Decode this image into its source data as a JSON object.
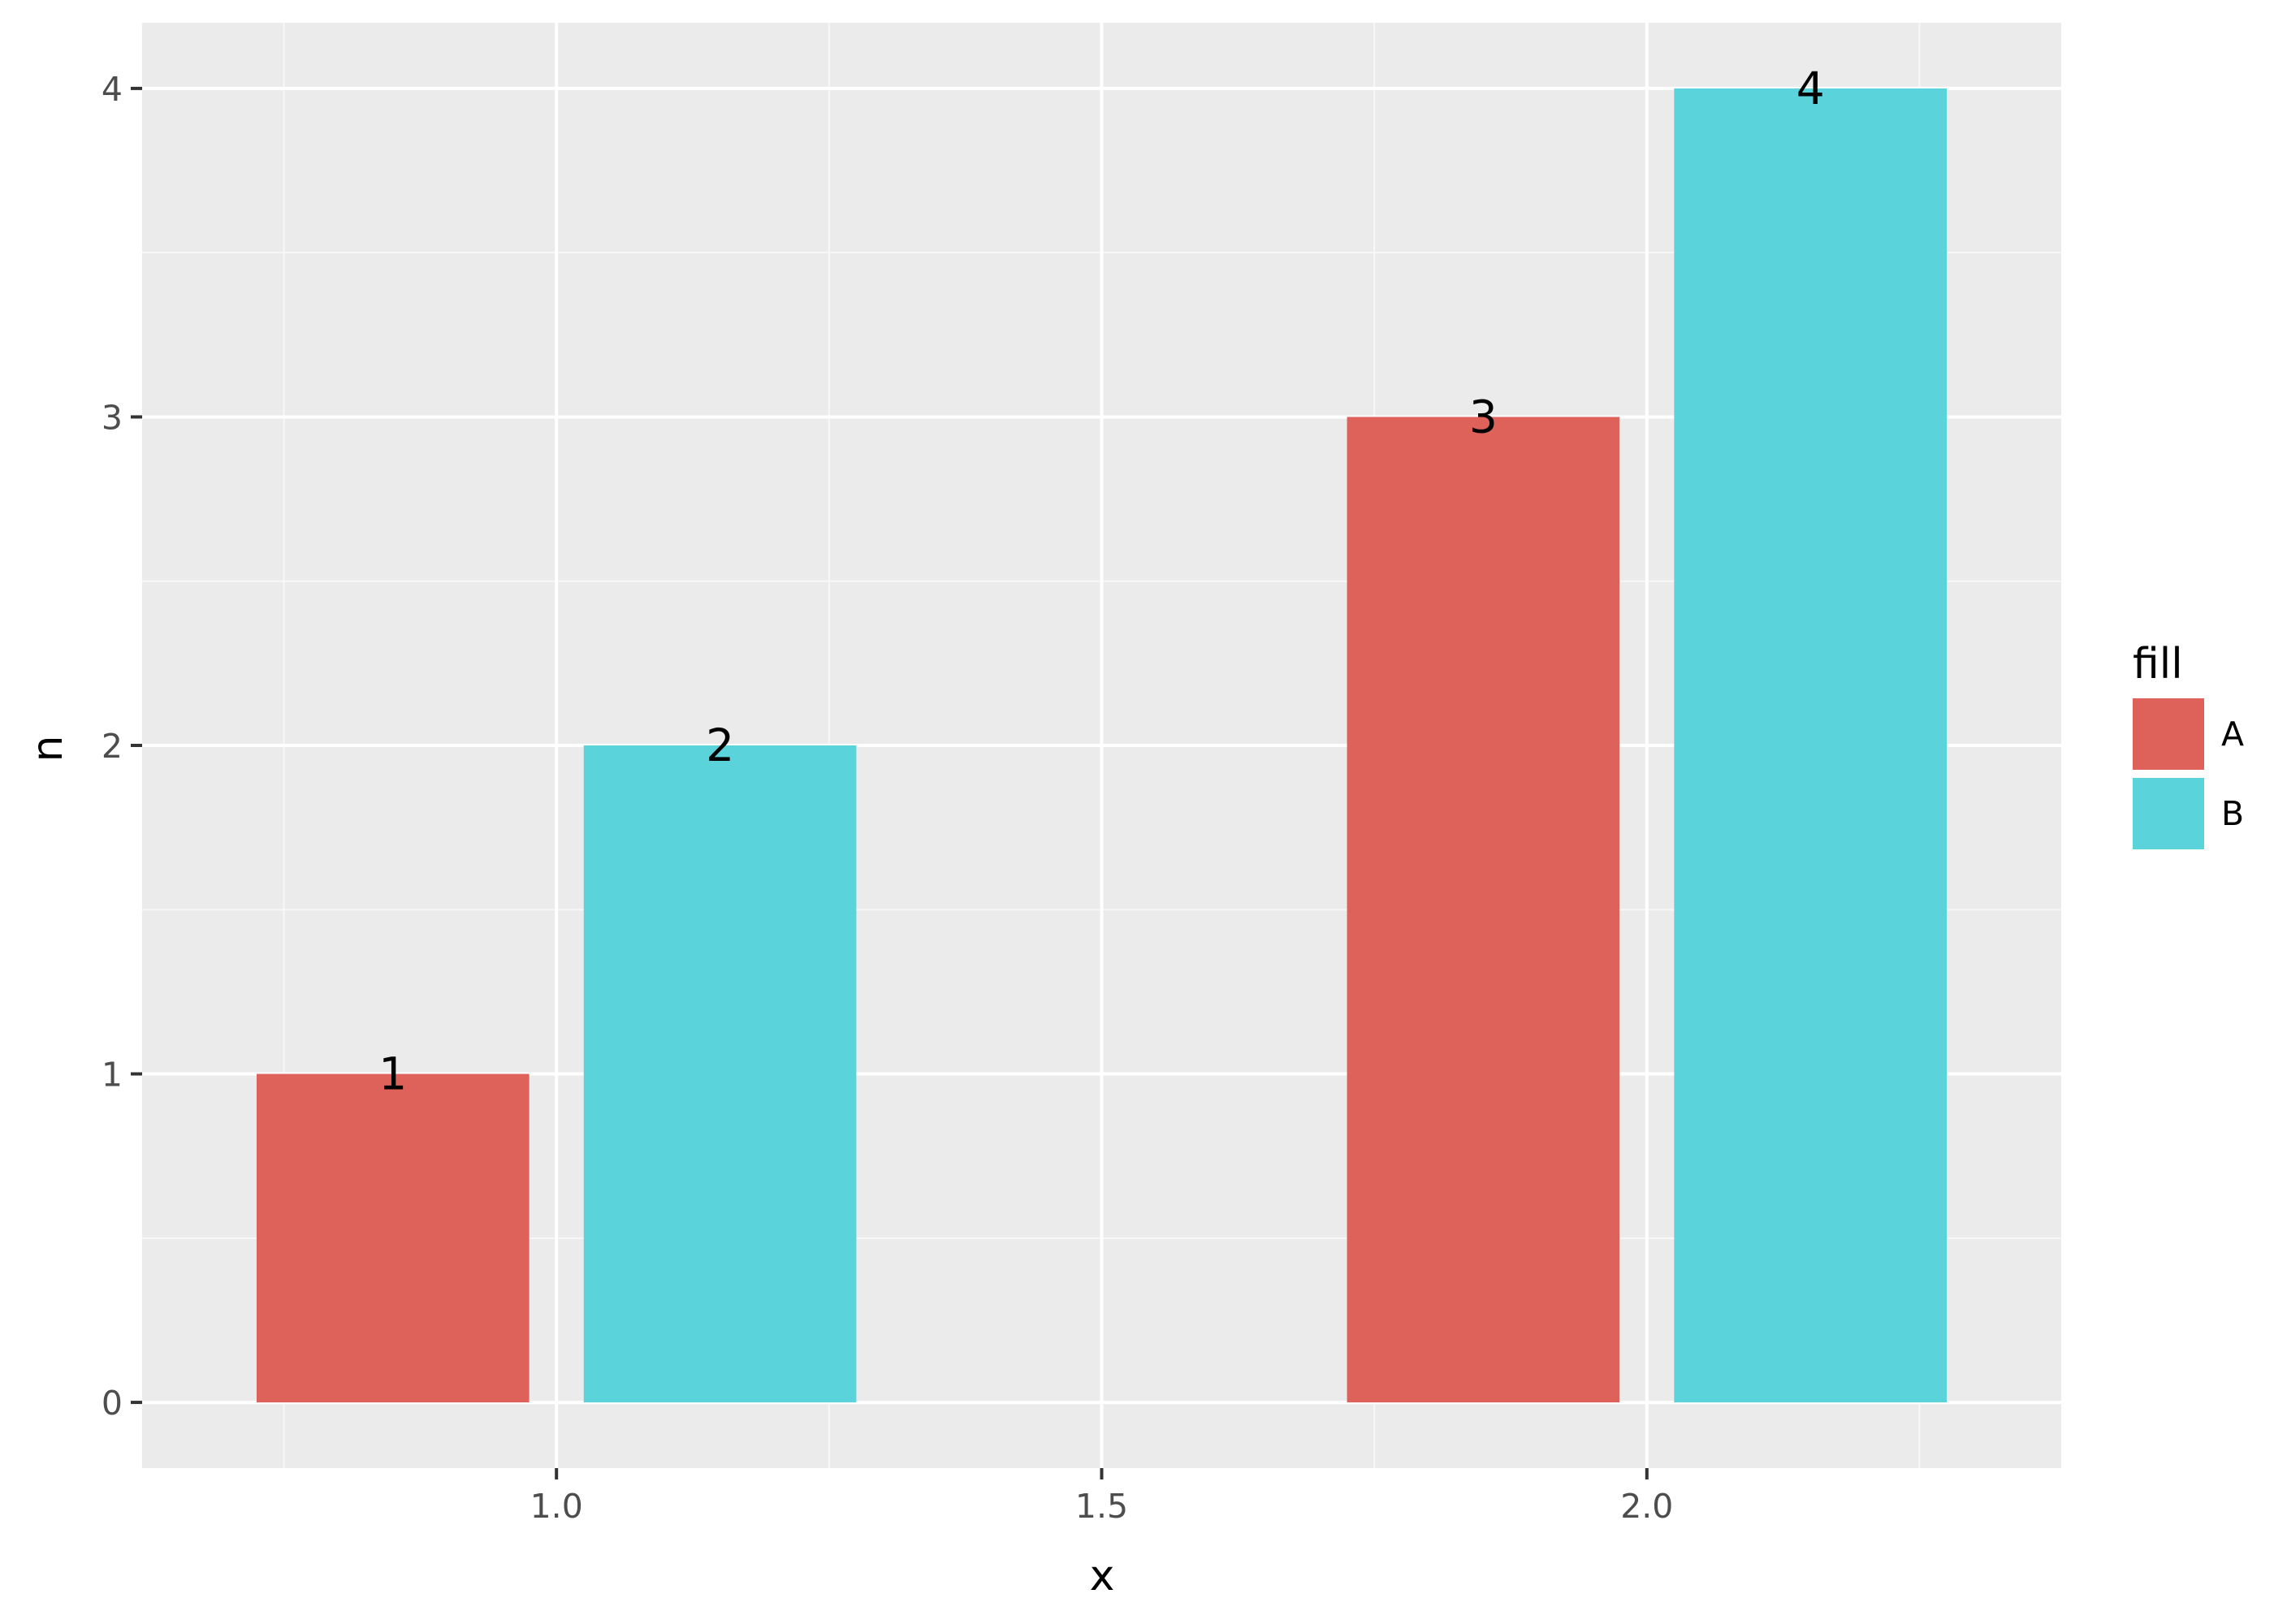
{
  "chart_data": {
    "type": "bar",
    "title": "",
    "xlabel": "x",
    "ylabel": "n",
    "xlim": [
      0.62,
      2.38
    ],
    "ylim": [
      -0.2,
      4.2
    ],
    "x_ticks": [
      1.0,
      1.5,
      2.0
    ],
    "x_tick_labels": [
      "1.0",
      "1.5",
      "2.0"
    ],
    "y_ticks": [
      0,
      1,
      2,
      3,
      4
    ],
    "y_tick_labels": [
      "0",
      "1",
      "2",
      "3",
      "4"
    ],
    "grid": true,
    "bar_width": 0.25,
    "legend": {
      "title": "fill",
      "placement": "right",
      "entries": [
        {
          "name": "A",
          "color": "#DE615A"
        },
        {
          "name": "B",
          "color": "#5AD3DB"
        }
      ]
    },
    "bars": [
      {
        "x": 0.85,
        "value": 1,
        "group": "A",
        "label": "1"
      },
      {
        "x": 1.15,
        "value": 2,
        "group": "B",
        "label": "2"
      },
      {
        "x": 1.85,
        "value": 3,
        "group": "A",
        "label": "3"
      },
      {
        "x": 2.15,
        "value": 4,
        "group": "B",
        "label": "4"
      }
    ]
  },
  "colors": {
    "panel_background": "#EBEBEB",
    "grid_major": "#FFFFFF",
    "grid_minor": "#F7F7F7",
    "tick_text": "#4D4D4D"
  }
}
